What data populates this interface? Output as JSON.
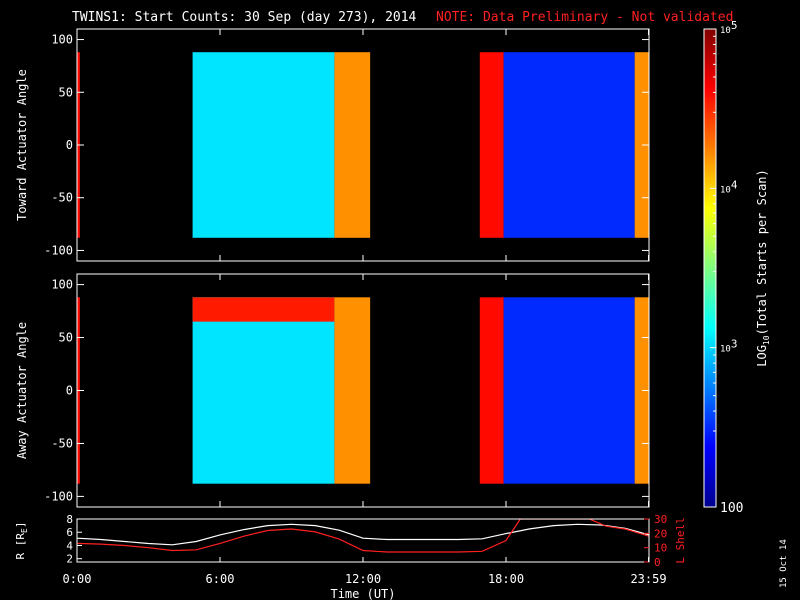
{
  "header": {
    "title": "TWINS1: Start Counts: 30 Sep (day 273), 2014",
    "note": "NOTE: Data Preliminary - Not validated"
  },
  "side_date": "15 Oct 14",
  "colors": {
    "note": "#ff2020",
    "lshell": "#ff2020",
    "radius": "#ffffff",
    "background": "#000000"
  },
  "chart_data": [
    {
      "type": "heatmap",
      "name": "toward-panel",
      "ylabel": "Toward Actuator Angle",
      "ylim": [
        -110,
        110
      ],
      "yticks": [
        100,
        50,
        0,
        -50,
        -100
      ],
      "xlim": [
        0,
        24
      ],
      "segments": [
        {
          "x0": 0.0,
          "x1": 0.12,
          "level": 4.6
        },
        {
          "x0": 4.85,
          "x1": 10.8,
          "level": 3.05
        },
        {
          "x0": 10.8,
          "x1": 12.3,
          "level": 4.2
        },
        {
          "x0": 16.9,
          "x1": 17.9,
          "level": 4.6
        },
        {
          "x0": 17.9,
          "x1": 23.4,
          "level": 2.5
        },
        {
          "x0": 23.4,
          "x1": 24.0,
          "level": 4.2
        }
      ],
      "data_range": [
        -88,
        88
      ],
      "bright_rows": []
    },
    {
      "type": "heatmap",
      "name": "away-panel",
      "ylabel": "Away Actuator Angle",
      "ylim": [
        -110,
        110
      ],
      "yticks": [
        100,
        50,
        0,
        -50,
        -100
      ],
      "xlim": [
        0,
        24
      ],
      "segments": [
        {
          "x0": 0.0,
          "x1": 0.12,
          "level": 4.6
        },
        {
          "x0": 4.85,
          "x1": 10.8,
          "level": 3.05
        },
        {
          "x0": 10.8,
          "x1": 12.3,
          "level": 4.2
        },
        {
          "x0": 16.9,
          "x1": 17.9,
          "level": 4.6
        },
        {
          "x0": 17.9,
          "x1": 23.4,
          "level": 2.5
        },
        {
          "x0": 23.4,
          "x1": 24.0,
          "level": 4.2
        }
      ],
      "data_range": [
        -88,
        88
      ],
      "bright_rows": [
        {
          "x0": 4.85,
          "x1": 10.8,
          "y0": 65,
          "y1": 88,
          "level": 4.55
        }
      ]
    },
    {
      "type": "line",
      "name": "orbit-panel",
      "xlabel": "Time (UT)",
      "xticks": [
        "0:00",
        "6:00",
        "12:00",
        "18:00",
        "23:59"
      ],
      "xtick_values": [
        0,
        6,
        12,
        18,
        23.98
      ],
      "xlim": [
        0,
        24
      ],
      "left_axis": {
        "label": "R [R",
        "label_sub": "E",
        "label_end": "]",
        "ylim": [
          1.5,
          8
        ],
        "ticks": [
          "8",
          "6",
          "4",
          "2"
        ],
        "tick_values": [
          8,
          6,
          4,
          2
        ]
      },
      "right_axis": {
        "label": "L Shell",
        "ylim": [
          0,
          30
        ],
        "ticks": [
          "30",
          "20",
          "10",
          "0"
        ],
        "tick_values": [
          30,
          20,
          10,
          0
        ]
      },
      "series": [
        {
          "axis": "left",
          "x": [
            0,
            1,
            2,
            3,
            4,
            5,
            6,
            7,
            8,
            9,
            10,
            11,
            12,
            13,
            14,
            15,
            16,
            17,
            18,
            19,
            20,
            21,
            22,
            23,
            24
          ],
          "y": [
            5.1,
            4.9,
            4.6,
            4.3,
            4.1,
            4.6,
            5.6,
            6.4,
            7.0,
            7.2,
            7.0,
            6.3,
            5.1,
            4.9,
            4.9,
            4.9,
            4.9,
            5.0,
            5.8,
            6.5,
            7.0,
            7.2,
            7.1,
            6.6,
            5.6
          ]
        },
        {
          "axis": "right",
          "x": [
            0,
            1,
            2,
            3,
            4,
            5,
            6,
            7,
            8,
            9,
            10,
            11,
            12,
            13,
            14,
            15,
            16,
            17,
            18,
            18.6,
            21.5,
            22.2,
            23,
            24
          ],
          "y": [
            13,
            12.5,
            11.5,
            10,
            8,
            8.5,
            13,
            18,
            22,
            23,
            21,
            16,
            8,
            7,
            7,
            7,
            7,
            7.5,
            15,
            30,
            30,
            25,
            23,
            18
          ]
        }
      ]
    }
  ],
  "colorbar": {
    "label": "LOG",
    "label_sub": "10",
    "label_end": "(Total Starts per Scan)",
    "range": [
      2,
      5
    ],
    "ticks": [
      {
        "value": 5,
        "base": "10",
        "exp": "5"
      },
      {
        "value": 4,
        "base": "10",
        "exp": "4"
      },
      {
        "value": 3,
        "base": "10",
        "exp": "3"
      },
      {
        "value": 2,
        "base": "100",
        "exp": ""
      }
    ]
  }
}
